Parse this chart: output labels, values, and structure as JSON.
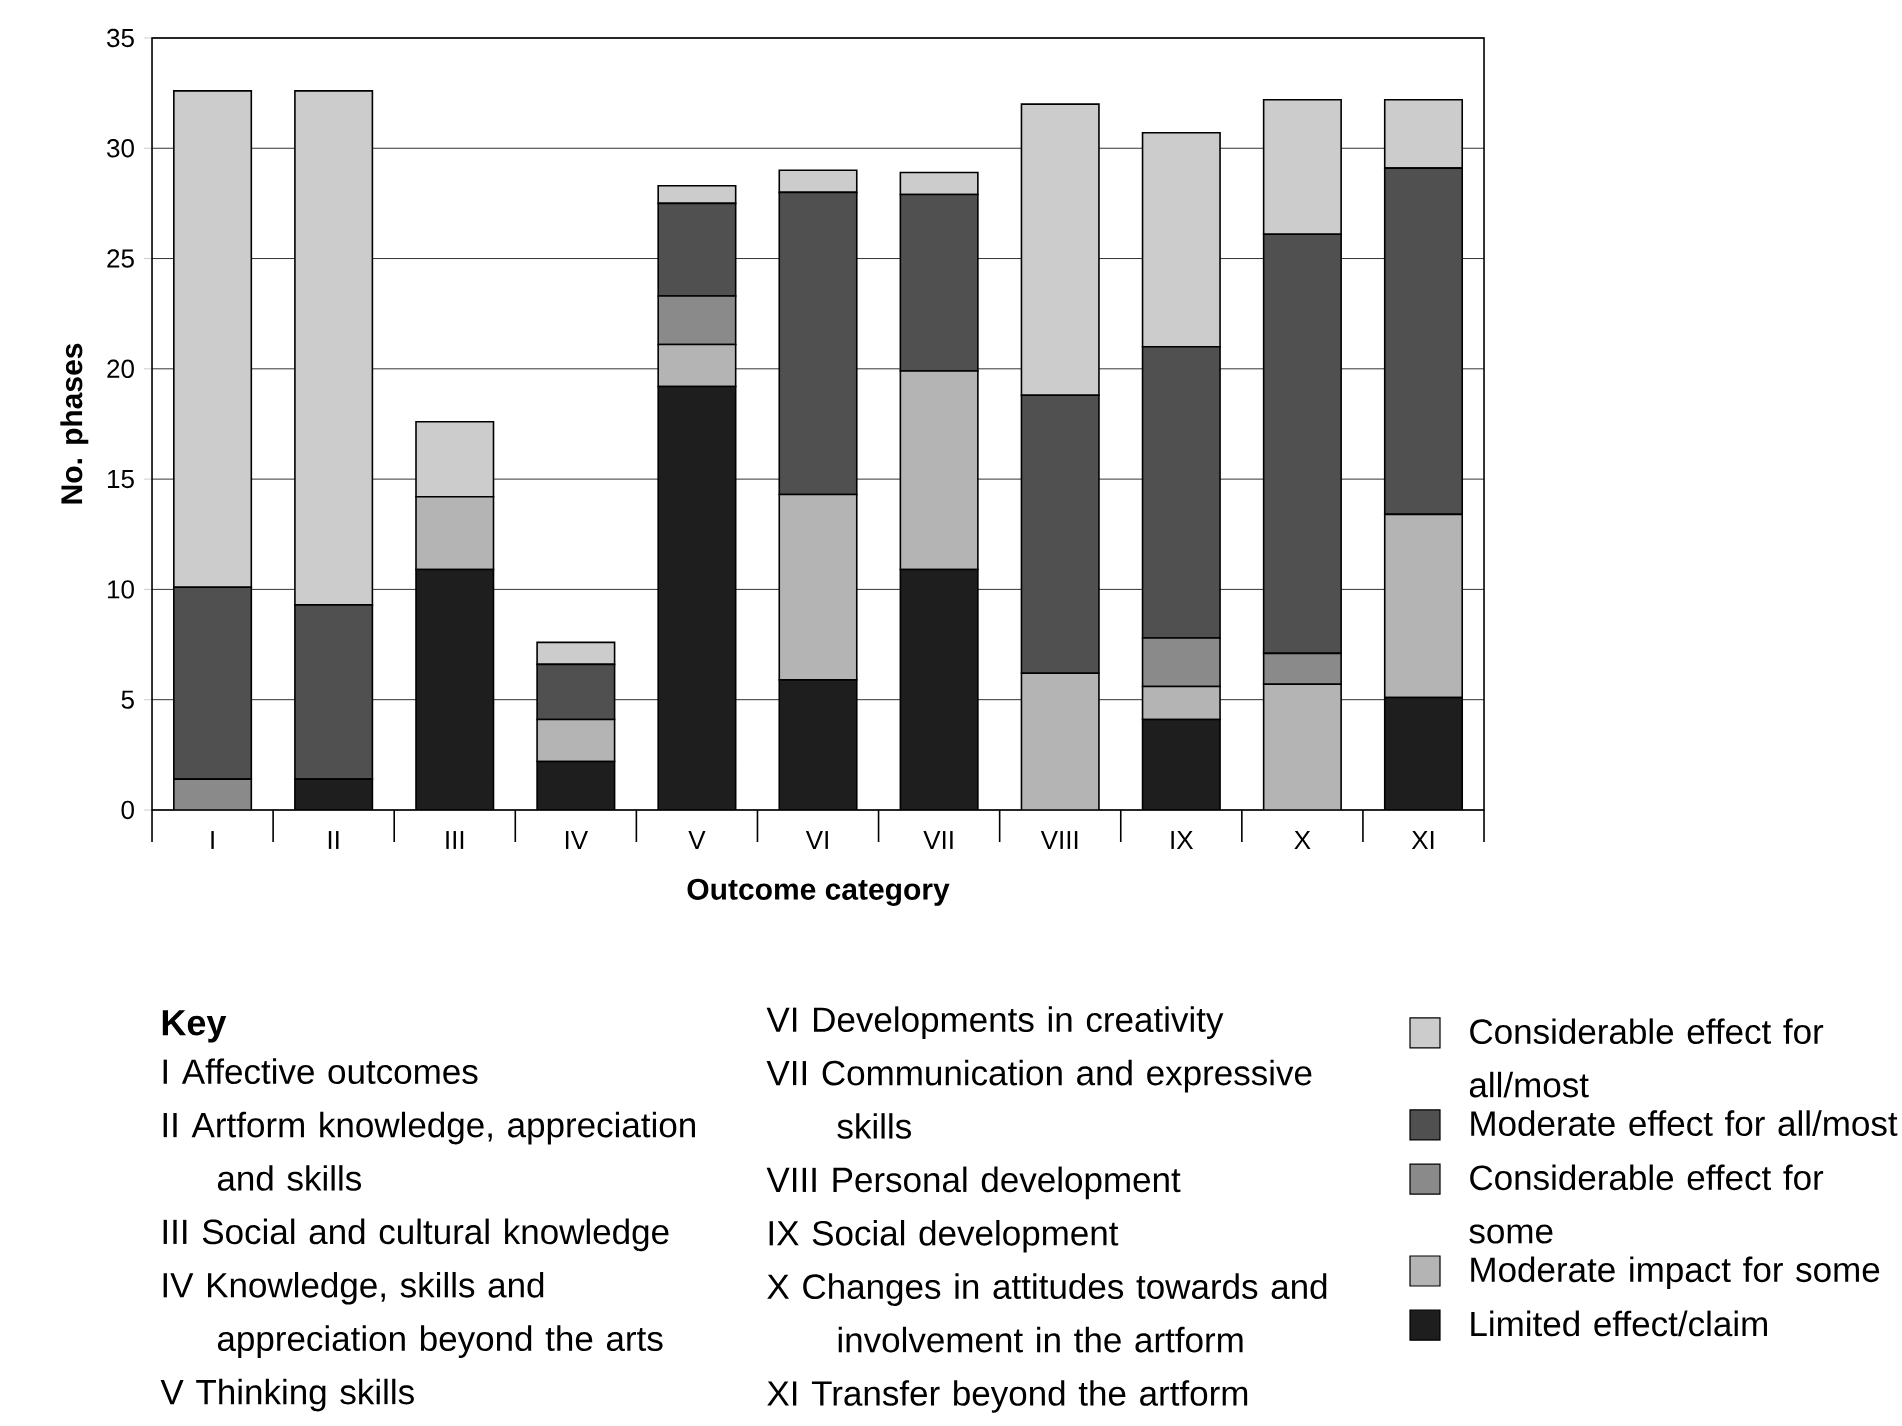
{
  "chart_data": {
    "type": "bar",
    "stacked": true,
    "categories": [
      "I",
      "II",
      "III",
      "IV",
      "V",
      "VI",
      "VII",
      "VIII",
      "IX",
      "X",
      "XI"
    ],
    "xlabel": "Outcome category",
    "ylabel": "No. phases",
    "ylim": [
      0,
      35
    ],
    "yticks": [
      0,
      5,
      10,
      15,
      20,
      25,
      30,
      35
    ],
    "grid": "y",
    "legend": "bottom right",
    "series": [
      {
        "name": "Limited effect/claim",
        "color": "#1e1e1e",
        "values": [
          0,
          1.4,
          10.9,
          2.2,
          19.2,
          5.9,
          10.9,
          0,
          4.1,
          0,
          5.1
        ]
      },
      {
        "name": "Moderate impact for some",
        "color": "#b4b4b4",
        "values": [
          0,
          0,
          3.3,
          1.9,
          1.9,
          8.4,
          9.0,
          6.2,
          1.5,
          5.7,
          8.3
        ]
      },
      {
        "name": "Considerable effect for some",
        "color": "#8a8a8a",
        "values": [
          1.4,
          0,
          0,
          0,
          2.2,
          0,
          0,
          0,
          2.2,
          1.4,
          0
        ]
      },
      {
        "name": "Moderate effect for all/most",
        "color": "#505050",
        "values": [
          8.7,
          7.9,
          0,
          2.5,
          4.2,
          13.7,
          8.0,
          12.6,
          13.2,
          19.0,
          15.7
        ]
      },
      {
        "name": "Considerable effect for all/most",
        "color": "#cccccc",
        "values": [
          22.5,
          23.3,
          3.4,
          1.0,
          0.8,
          1.0,
          1.0,
          13.2,
          9.7,
          6.1,
          3.1
        ]
      }
    ],
    "annotations": [
      "Key",
      "I Affective outcomes",
      "II Artform knowledge, appreciation and skills",
      "III Social and cultural knowledge",
      "IV Knowledge, skills and appreciation beyond the arts",
      "V Thinking skills",
      "VI Developments in creativity",
      "VII Communication and expressive skills",
      "VIII Personal development",
      "IX Social development",
      "X Changes in attitudes towards and involvement in the artform",
      "XI Transfer beyond the artform"
    ]
  }
}
